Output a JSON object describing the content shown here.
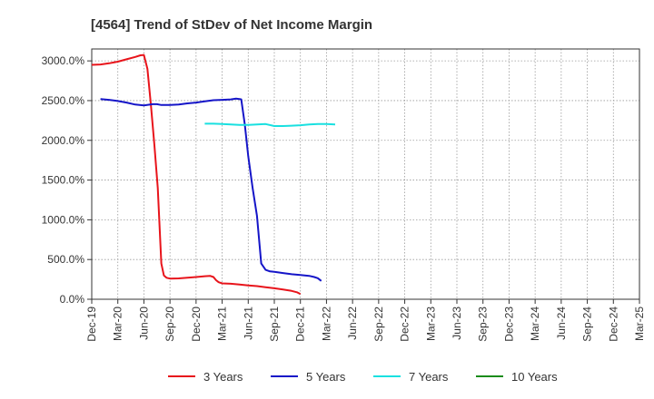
{
  "chart_data": {
    "type": "line",
    "title": "[4564]  Trend of StDev of Net Income Margin",
    "xlabel": "",
    "ylabel": "",
    "ylim": [
      0,
      3150
    ],
    "y_ticks": [
      0,
      500,
      1000,
      1500,
      2000,
      2500,
      3000
    ],
    "y_tick_labels": [
      "0.0%",
      "500.0%",
      "1000.0%",
      "1500.0%",
      "2000.0%",
      "2500.0%",
      "3000.0%"
    ],
    "x_tick_labels": [
      "Dec-19",
      "Mar-20",
      "Jun-20",
      "Sep-20",
      "Dec-20",
      "Mar-21",
      "Jun-21",
      "Sep-21",
      "Dec-21",
      "Mar-22",
      "Jun-22",
      "Sep-22",
      "Dec-22",
      "Mar-23",
      "Jun-23",
      "Sep-23",
      "Dec-23",
      "Mar-24",
      "Jun-24",
      "Sep-24",
      "Dec-24",
      "Mar-25"
    ],
    "grid": true,
    "legend_position": "bottom",
    "series": [
      {
        "name": "3 Years",
        "color": "#e8141b",
        "points": [
          [
            0,
            2950
          ],
          [
            1,
            2955
          ],
          [
            2,
            2970
          ],
          [
            3,
            2990
          ],
          [
            4,
            3020
          ],
          [
            5,
            3050
          ],
          [
            5.6,
            3070
          ],
          [
            6,
            3075
          ],
          [
            6.4,
            2900
          ],
          [
            6.8,
            2450
          ],
          [
            7.2,
            1950
          ],
          [
            7.6,
            1400
          ],
          [
            8,
            450
          ],
          [
            8.3,
            300
          ],
          [
            8.6,
            270
          ],
          [
            9,
            260
          ],
          [
            10,
            262
          ],
          [
            11,
            270
          ],
          [
            12,
            280
          ],
          [
            13,
            290
          ],
          [
            13.6,
            295
          ],
          [
            14,
            280
          ],
          [
            14.3,
            240
          ],
          [
            14.6,
            215
          ],
          [
            15,
            200
          ],
          [
            16,
            195
          ],
          [
            17,
            185
          ],
          [
            18,
            175
          ],
          [
            19,
            165
          ],
          [
            20,
            152
          ],
          [
            21,
            138
          ],
          [
            22,
            122
          ],
          [
            23,
            105
          ],
          [
            23.6,
            88
          ],
          [
            24,
            65
          ]
        ]
      },
      {
        "name": "5 Years",
        "color": "#1515c8",
        "points": [
          [
            1,
            2520
          ],
          [
            2,
            2510
          ],
          [
            3,
            2495
          ],
          [
            4,
            2475
          ],
          [
            5,
            2450
          ],
          [
            6,
            2440
          ],
          [
            7,
            2455
          ],
          [
            7.5,
            2455
          ],
          [
            8,
            2445
          ],
          [
            9,
            2445
          ],
          [
            10,
            2450
          ],
          [
            11,
            2465
          ],
          [
            12,
            2475
          ],
          [
            13,
            2490
          ],
          [
            14,
            2505
          ],
          [
            15,
            2510
          ],
          [
            16,
            2515
          ],
          [
            16.6,
            2525
          ],
          [
            17,
            2520
          ],
          [
            17.2,
            2515
          ],
          [
            17.6,
            2200
          ],
          [
            18,
            1800
          ],
          [
            18.5,
            1400
          ],
          [
            19,
            1050
          ],
          [
            19.5,
            450
          ],
          [
            20,
            370
          ],
          [
            20.5,
            350
          ],
          [
            21,
            345
          ],
          [
            22,
            330
          ],
          [
            23,
            315
          ],
          [
            24,
            305
          ],
          [
            25,
            295
          ],
          [
            25.6,
            280
          ],
          [
            26,
            265
          ],
          [
            26.4,
            230
          ]
        ]
      },
      {
        "name": "7 Years",
        "color": "#19e0e0",
        "points": [
          [
            13,
            2210
          ],
          [
            14,
            2210
          ],
          [
            15,
            2205
          ],
          [
            16,
            2200
          ],
          [
            17,
            2195
          ],
          [
            18,
            2195
          ],
          [
            19,
            2200
          ],
          [
            20,
            2205
          ],
          [
            21,
            2180
          ],
          [
            22,
            2180
          ],
          [
            23,
            2185
          ],
          [
            24,
            2190
          ],
          [
            25,
            2200
          ],
          [
            26,
            2205
          ],
          [
            27,
            2205
          ],
          [
            28,
            2200
          ]
        ]
      },
      {
        "name": "10 Years",
        "color": "#1a8c1a",
        "points": []
      }
    ]
  }
}
